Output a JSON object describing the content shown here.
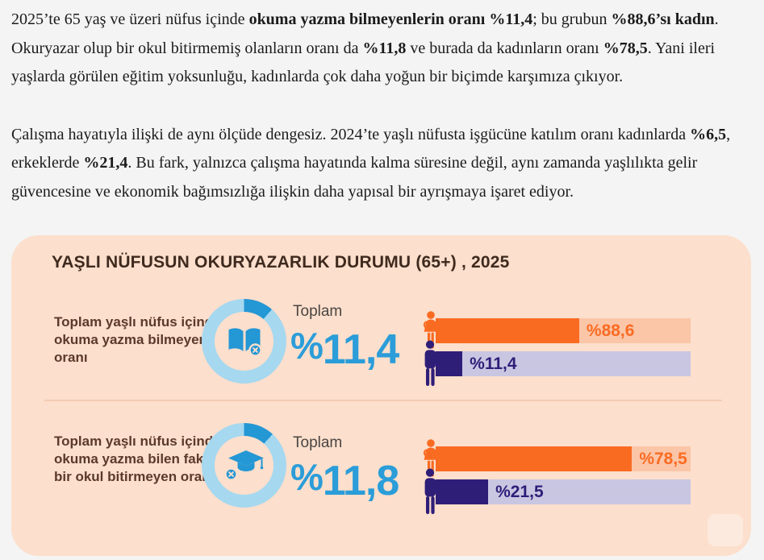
{
  "article": {
    "paragraphs": [
      {
        "segments": [
          {
            "text": "2025’te 65 yaş ve üzeri nüfus içinde ",
            "bold": false
          },
          {
            "text": "okuma yazma bilmeyenlerin oranı %11,4",
            "bold": true
          },
          {
            "text": "; bu grubun ",
            "bold": false
          },
          {
            "text": "%88,6’sı kadın",
            "bold": true
          },
          {
            "text": ". Okuryazar olup bir okul bitirmemiş olanların oranı da ",
            "bold": false
          },
          {
            "text": "%11,8",
            "bold": true
          },
          {
            "text": " ve burada da kadınların oranı ",
            "bold": false
          },
          {
            "text": "%78,5",
            "bold": true
          },
          {
            "text": ". Yani ileri yaşlarda görülen eğitim yoksunluğu, kadınlarda çok daha yoğun bir biçimde karşımıza çıkıyor.",
            "bold": false
          }
        ]
      },
      {
        "segments": [
          {
            "text": "Çalışma hayatıyla ilişki de aynı ölçüde dengesiz. 2024’te yaşlı nüfusta işgücüne katılım oranı kadınlarda ",
            "bold": false
          },
          {
            "text": "%6,5",
            "bold": true
          },
          {
            "text": ", erkeklerde ",
            "bold": false
          },
          {
            "text": "%21,4",
            "bold": true
          },
          {
            "text": ". Bu fark, yalnızca çalışma hayatında kalma süresine değil, aynı zamanda yaşlılıkta gelir güvencesine ve ekonomik bağımsızlığa ilişkin daha yapısal bir ayrışmaya işaret ediyor.",
            "bold": false
          }
        ]
      }
    ]
  },
  "infographic": {
    "title": "YAŞLI NÜFUSUN OKURYAZARLIK DURUMU (65+) , 2025",
    "colors": {
      "card_bg": "#fcdfcc",
      "title": "#3f2a1f",
      "row_label": "#5c392c",
      "total_label": "#4a4543",
      "number_blue": "#2b9dd9",
      "accent_blue": "#2497d5",
      "donut_light": "#a6d8f0",
      "female": "#fa6b22",
      "female_track": "#fbc5a7",
      "male": "#2f1e78",
      "male_track": "#c9c6e2",
      "divider": "#f2ccb3"
    },
    "rows": [
      {
        "label": "Toplam yaşlı nüfus içinde okuma yazma bilmeyen oranı",
        "icon": "book-x-icon",
        "donut_pct": 11.4,
        "total_label": "Toplam",
        "total_sign": "%",
        "total_value": "11,4",
        "bars": [
          {
            "gender": "female",
            "value": 88.6,
            "value_label": "%88,6",
            "display_fill_pct": 56.3
          },
          {
            "gender": "male",
            "value": 11.4,
            "value_label": "%11,4",
            "display_fill_pct": 10.5
          }
        ]
      },
      {
        "label": "Toplam yaşlı nüfus içinde okuma yazma bilen fakat bir okul bitirmeyen oranı",
        "icon": "graduation-cap-x-icon",
        "donut_pct": 11.8,
        "total_label": "Toplam",
        "total_sign": "%",
        "total_value": "11,8",
        "bars": [
          {
            "gender": "female",
            "value": 78.5,
            "value_label": "%78,5",
            "display_fill_pct": 77.0
          },
          {
            "gender": "male",
            "value": 21.5,
            "value_label": "%21,5",
            "display_fill_pct": 20.6
          }
        ]
      }
    ]
  },
  "chart_data": [
    {
      "type": "bar",
      "orientation": "horizontal",
      "title": "Toplam yaşlı nüfus içinde okuma yazma bilmeyen oranı",
      "total_value": 11.4,
      "categories": [
        "Kadın",
        "Erkek"
      ],
      "values": [
        88.6,
        11.4
      ],
      "unit": "%",
      "xlim": [
        0,
        100
      ],
      "series_colors": [
        "#fa6b22",
        "#2f1e78"
      ],
      "grid": false,
      "legend": "none"
    },
    {
      "type": "bar",
      "orientation": "horizontal",
      "title": "Toplam yaşlı nüfus içinde okuma yazma bilen fakat bir okul bitirmeyen oranı",
      "total_value": 11.8,
      "categories": [
        "Kadın",
        "Erkek"
      ],
      "values": [
        78.5,
        21.5
      ],
      "unit": "%",
      "xlim": [
        0,
        100
      ],
      "series_colors": [
        "#fa6b22",
        "#2f1e78"
      ],
      "grid": false,
      "legend": "none"
    }
  ]
}
